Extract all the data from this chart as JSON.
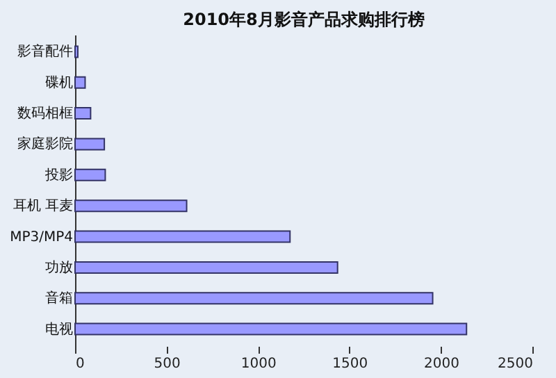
{
  "chart_data": {
    "type": "bar",
    "orientation": "horizontal",
    "title": "2010年8月影音产品求购排行榜",
    "categories": [
      "影音配件",
      "碟机",
      "数码相框",
      "家庭影院",
      "投影",
      "耳机 耳麦",
      "MP3/MP4",
      "功放",
      "音箱",
      "电视"
    ],
    "values": [
      15,
      55,
      85,
      160,
      165,
      610,
      1175,
      1435,
      1955,
      2140
    ],
    "color": "#9999ff",
    "xlim": [
      0,
      2500
    ],
    "xticks": [
      0,
      500,
      1000,
      1500,
      2000,
      2500
    ],
    "grid": false,
    "legend": false
  }
}
